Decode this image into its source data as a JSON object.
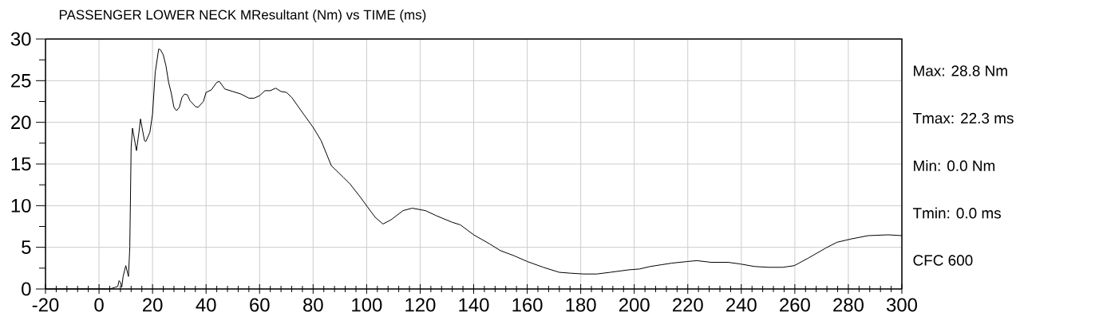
{
  "chart_data": {
    "type": "line",
    "title": "PASSENGER LOWER NECK MResultant (Nm) vs TIME (ms)",
    "x": [
      -20,
      -10,
      0,
      4,
      5,
      6,
      7,
      7.5,
      8,
      8.5,
      9,
      10,
      11,
      11.5,
      12,
      12.5,
      13.5,
      14,
      15,
      15.5,
      16,
      17,
      17.5,
      19,
      20,
      21,
      22.3,
      23,
      24,
      25,
      26,
      27,
      28,
      29,
      30,
      31,
      32,
      33,
      34,
      36,
      37,
      39,
      40,
      42,
      44,
      45,
      47,
      50,
      53,
      56,
      58,
      60,
      62,
      64,
      66,
      68,
      70,
      72,
      76.4,
      80,
      83,
      86.8,
      91.3,
      93.8,
      97.7,
      100.2,
      103.2,
      106.1,
      109.1,
      113.6,
      117,
      122,
      126,
      132,
      135,
      140,
      146,
      150,
      155,
      160,
      166,
      172,
      176,
      181,
      186,
      191,
      198,
      202,
      206,
      210,
      214,
      220,
      223.4,
      228.7,
      235,
      239.6,
      244.9,
      250.2,
      255.5,
      259.8,
      265,
      271.5,
      275.7,
      281,
      287.4,
      294.9,
      300
    ],
    "values": [
      0,
      0,
      0,
      0,
      0.1,
      0.2,
      0.3,
      1.0,
      0.8,
      0.2,
      1.5,
      2.8,
      1.5,
      5,
      17,
      19.3,
      17.5,
      16.6,
      19,
      20.4,
      19.5,
      17.8,
      17.7,
      18.8,
      21,
      26,
      28.8,
      28.7,
      28.1,
      26.8,
      24.8,
      23.5,
      21.8,
      21.4,
      21.8,
      23,
      23.4,
      23.3,
      22.6,
      21.9,
      21.8,
      22.5,
      23.6,
      23.9,
      24.8,
      24.9,
      24.0,
      23.7,
      23.4,
      22.9,
      22.9,
      23.2,
      23.8,
      23.8,
      24.1,
      23.7,
      23.6,
      23.0,
      21.0,
      19.4,
      17.8,
      14.8,
      13.4,
      12.6,
      11.0,
      9.9,
      8.6,
      7.8,
      8.3,
      9.4,
      9.7,
      9.4,
      8.8,
      8.0,
      7.7,
      6.5,
      5.4,
      4.6,
      4.0,
      3.3,
      2.6,
      2.0,
      1.9,
      1.8,
      1.8,
      2.0,
      2.3,
      2.4,
      2.7,
      2.9,
      3.1,
      3.3,
      3.4,
      3.2,
      3.2,
      3.0,
      2.7,
      2.6,
      2.6,
      2.8,
      3.7,
      4.9,
      5.6,
      6.0,
      6.4,
      6.5,
      6.4
    ],
    "color": "#000000",
    "xlim": [
      -20,
      300
    ],
    "ylim": [
      0,
      30
    ],
    "xticks": [
      -20,
      0,
      20,
      40,
      60,
      80,
      100,
      120,
      140,
      160,
      180,
      200,
      220,
      240,
      260,
      280,
      300
    ],
    "yticks": [
      0,
      5,
      10,
      15,
      20,
      25,
      30
    ],
    "grid": true,
    "annotations": [
      "Max: 28.8 Nm",
      "Tmax: 22.3 ms",
      "Min: 0.0 Nm",
      "Tmin: 0.0 ms",
      "CFC 600"
    ]
  }
}
